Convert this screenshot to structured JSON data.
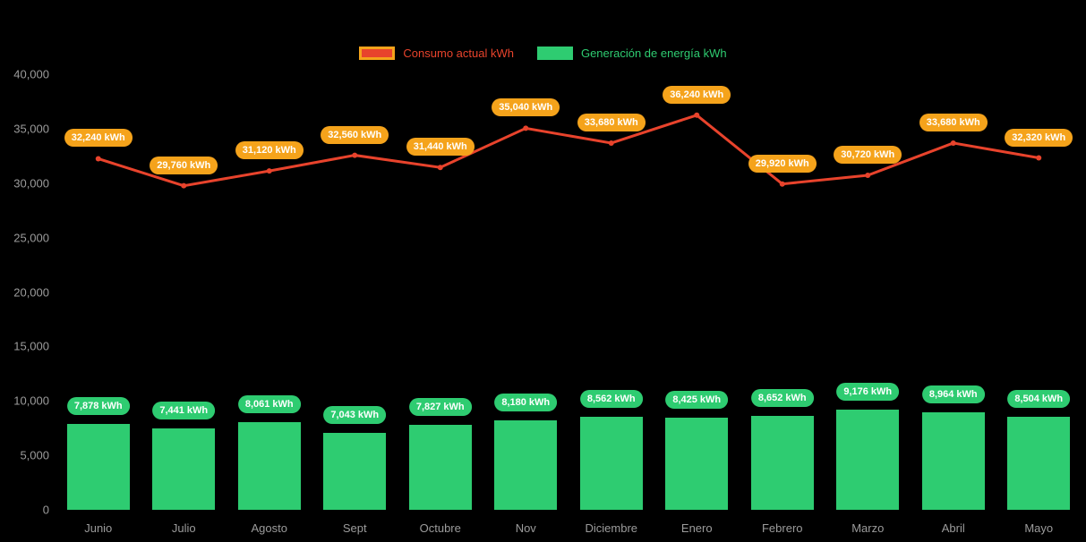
{
  "colors": {
    "background": "#000000",
    "axis_text": "#9b9b9b",
    "label_text": "#ffffff"
  },
  "chart_data": {
    "type": "mixed",
    "title": "",
    "unit": "kWh",
    "categories": [
      "Junio",
      "Julio",
      "Agosto",
      "Sept",
      "Octubre",
      "Nov",
      "Diciembre",
      "Enero",
      "Febrero",
      "Marzo",
      "Abril",
      "Mayo"
    ],
    "series": [
      {
        "name": "Consumo actual kWh",
        "type": "line",
        "color": "#e8432c",
        "label_bg": "#f5a31b",
        "values": [
          32240,
          29760,
          31120,
          32560,
          31440,
          35040,
          33680,
          36240,
          29920,
          30720,
          33680,
          32320
        ]
      },
      {
        "name": "Generación de energía kWh",
        "type": "bar",
        "color": "#2ecc71",
        "label_bg": "#2ecc71",
        "values": [
          7878,
          7441,
          8061,
          7043,
          7827,
          8180,
          8562,
          8425,
          8652,
          9176,
          8964,
          8504
        ]
      }
    ],
    "ylim": [
      0,
      40000
    ],
    "ytick_step": 5000,
    "ytick_labels": [
      "0",
      "5,000",
      "10,000",
      "15,000",
      "20,000",
      "25,000",
      "30,000",
      "35,000",
      "40,000"
    ],
    "grid": false,
    "legend_position": "top",
    "value_labels_shown": true
  }
}
